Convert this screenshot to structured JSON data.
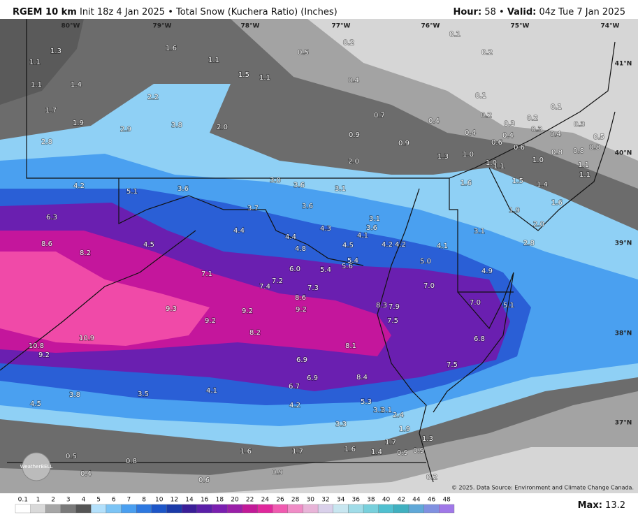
{
  "header": {
    "model": "RGEM 10 km",
    "run": "Init 18z 4 Jan 2025 • Total Snow (Kuchera Ratio) (Inches)",
    "hour_label": "Hour:",
    "hour": "58",
    "sep": "•",
    "valid_label": "Valid:",
    "valid": "04z Tue 7 Jan 2025"
  },
  "map": {
    "longitudes": [
      "80°W",
      "79°W",
      "78°W",
      "77°W",
      "76°W",
      "75°W",
      "74°W"
    ],
    "latitudes": [
      "41°N",
      "40°N",
      "39°N",
      "38°N",
      "37°N"
    ],
    "points": [
      "1.3",
      "1.6",
      "1.1",
      "1.1",
      "0.5",
      "0.2",
      "0.1",
      "0.2",
      "1.1",
      "1.4",
      "1.5",
      "1.1",
      "0.4",
      "2.2",
      "0.1",
      "0.1",
      "1.7",
      "1.9",
      "2.9",
      "3.8",
      "2.0",
      "0.7",
      "0.4",
      "0.2",
      "0.3",
      "0.2",
      "0.3",
      "2.8",
      "0.9",
      "0.9",
      "0.4",
      "0.4",
      "0.3",
      "0.4",
      "0.5",
      "0.6",
      "0.6",
      "0.8",
      "0.8",
      "0.8",
      "1.3",
      "1.0",
      "1.0",
      "1.1",
      "2.0",
      "1.0",
      "1.1",
      "1.1",
      "3.0",
      "3.6",
      "3.1",
      "4.2",
      "5.1",
      "3.6",
      "1.6",
      "1.5",
      "1.4",
      "1.6",
      "1.9",
      "3.7",
      "3.6",
      "6.3",
      "3.1",
      "2.0",
      "4.4",
      "4.3",
      "3.6",
      "3.1",
      "8.6",
      "4.5",
      "4.4",
      "4.1",
      "2.8",
      "8.2",
      "4.8",
      "4.5",
      "4.2",
      "4.2",
      "4.1",
      "5.4",
      "5.0",
      "6.0",
      "5.4",
      "5.6",
      "4.9",
      "7.1",
      "7.2",
      "7.4",
      "7.0",
      "7.3",
      "8.6",
      "7.0",
      "8.3",
      "7.9",
      "5.1",
      "9.3",
      "9.2",
      "9.2",
      "7.5",
      "9.2",
      "8.2",
      "6.8",
      "10.8",
      "10.9",
      "8.1",
      "9.2",
      "6.9",
      "7.5",
      "8.4",
      "6.9",
      "6.7",
      "4.1",
      "3.8",
      "3.5",
      "5.3",
      "4.5",
      "4.2",
      "3.1",
      "3.1",
      "2.4",
      "3.3",
      "1.9",
      "1.3",
      "1.7",
      "1.6",
      "1.7",
      "1.6",
      "1.4",
      "0.9",
      "0.9",
      "0.5",
      "0.8",
      "0.4",
      "0.9",
      "0.6",
      "0.2"
    ],
    "logo": "WeatherBELL",
    "credit": "© 2025. Data Source: Environment and Climate Change Canada."
  },
  "colorbar": {
    "labels": [
      "0.1",
      "1",
      "2",
      "3",
      "4",
      "5",
      "6",
      "7",
      "8",
      "10",
      "12",
      "14",
      "16",
      "18",
      "20",
      "22",
      "24",
      "26",
      "28",
      "30",
      "32",
      "34",
      "36",
      "38",
      "40",
      "42",
      "44",
      "46",
      "48"
    ],
    "max_label": "Max:",
    "max": "13.2"
  }
}
